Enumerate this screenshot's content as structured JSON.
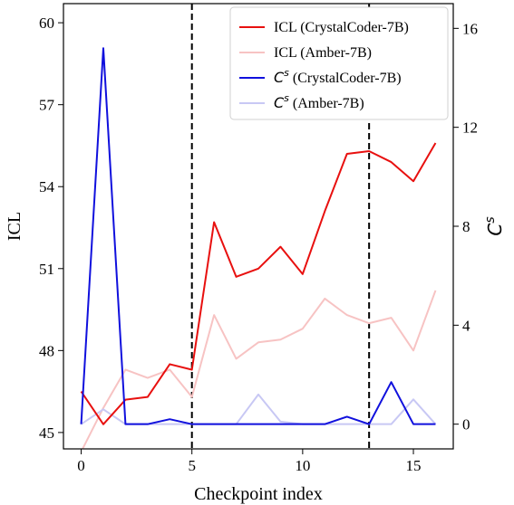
{
  "chart_data": {
    "type": "line",
    "xlabel": "Checkpoint index",
    "ylabel_left": "ICL",
    "ylabel_right": "C^s",
    "x": [
      0,
      1,
      2,
      3,
      4,
      5,
      6,
      7,
      8,
      9,
      10,
      11,
      12,
      13,
      14,
      15,
      16
    ],
    "xlim": [
      -0.8,
      16.8
    ],
    "xticks": [
      0,
      5,
      10,
      15
    ],
    "ylim_left": [
      44.4,
      60.7
    ],
    "yticks_left": [
      45,
      48,
      51,
      54,
      57,
      60
    ],
    "ylim_right": [
      -1.0,
      17.0
    ],
    "yticks_right": [
      0,
      4,
      8,
      12,
      16
    ],
    "vlines": [
      5,
      13
    ],
    "legend_position": "top-right",
    "series": [
      {
        "name": "ICL (CrystalCoder-7B)",
        "axis": "left",
        "color": "#e8100f",
        "values": [
          46.5,
          45.3,
          46.2,
          46.3,
          47.5,
          47.3,
          52.7,
          50.7,
          51.0,
          51.8,
          50.8,
          53.1,
          55.2,
          55.3,
          54.9,
          54.2,
          55.6
        ]
      },
      {
        "name": "ICL (Amber-7B)",
        "axis": "left",
        "color": "#f7c3c3",
        "values": [
          44.3,
          45.9,
          47.3,
          47.0,
          47.3,
          46.3,
          49.3,
          47.7,
          48.3,
          48.4,
          48.8,
          49.9,
          49.3,
          49.0,
          49.2,
          48.0,
          50.2
        ]
      },
      {
        "name": "C^s (CrystalCoder-7B)",
        "axis": "right",
        "color": "#1010dd",
        "values": [
          0.0,
          15.2,
          0.0,
          0.0,
          0.2,
          0.0,
          0.0,
          0.0,
          0.0,
          0.0,
          0.0,
          0.0,
          0.3,
          0.0,
          1.7,
          0.0,
          0.0
        ]
      },
      {
        "name": "C^s (Amber-7B)",
        "axis": "right",
        "color": "#c8c8f4",
        "values": [
          0.0,
          0.6,
          0.0,
          0.0,
          0.0,
          0.0,
          0.0,
          0.0,
          1.2,
          0.1,
          0.0,
          0.0,
          0.0,
          0.0,
          0.0,
          1.0,
          0.0
        ]
      }
    ],
    "legend": [
      {
        "main": "ICL",
        "suffix": " (CrystalCoder-7B)",
        "italic_main": false
      },
      {
        "main": "ICL",
        "suffix": " (Amber-7B)",
        "italic_main": false
      },
      {
        "main": "C",
        "sup": "s",
        "suffix": " (CrystalCoder-7B)",
        "italic_main": true
      },
      {
        "main": "C",
        "sup": "s",
        "suffix": " (Amber-7B)",
        "italic_main": true
      }
    ]
  }
}
